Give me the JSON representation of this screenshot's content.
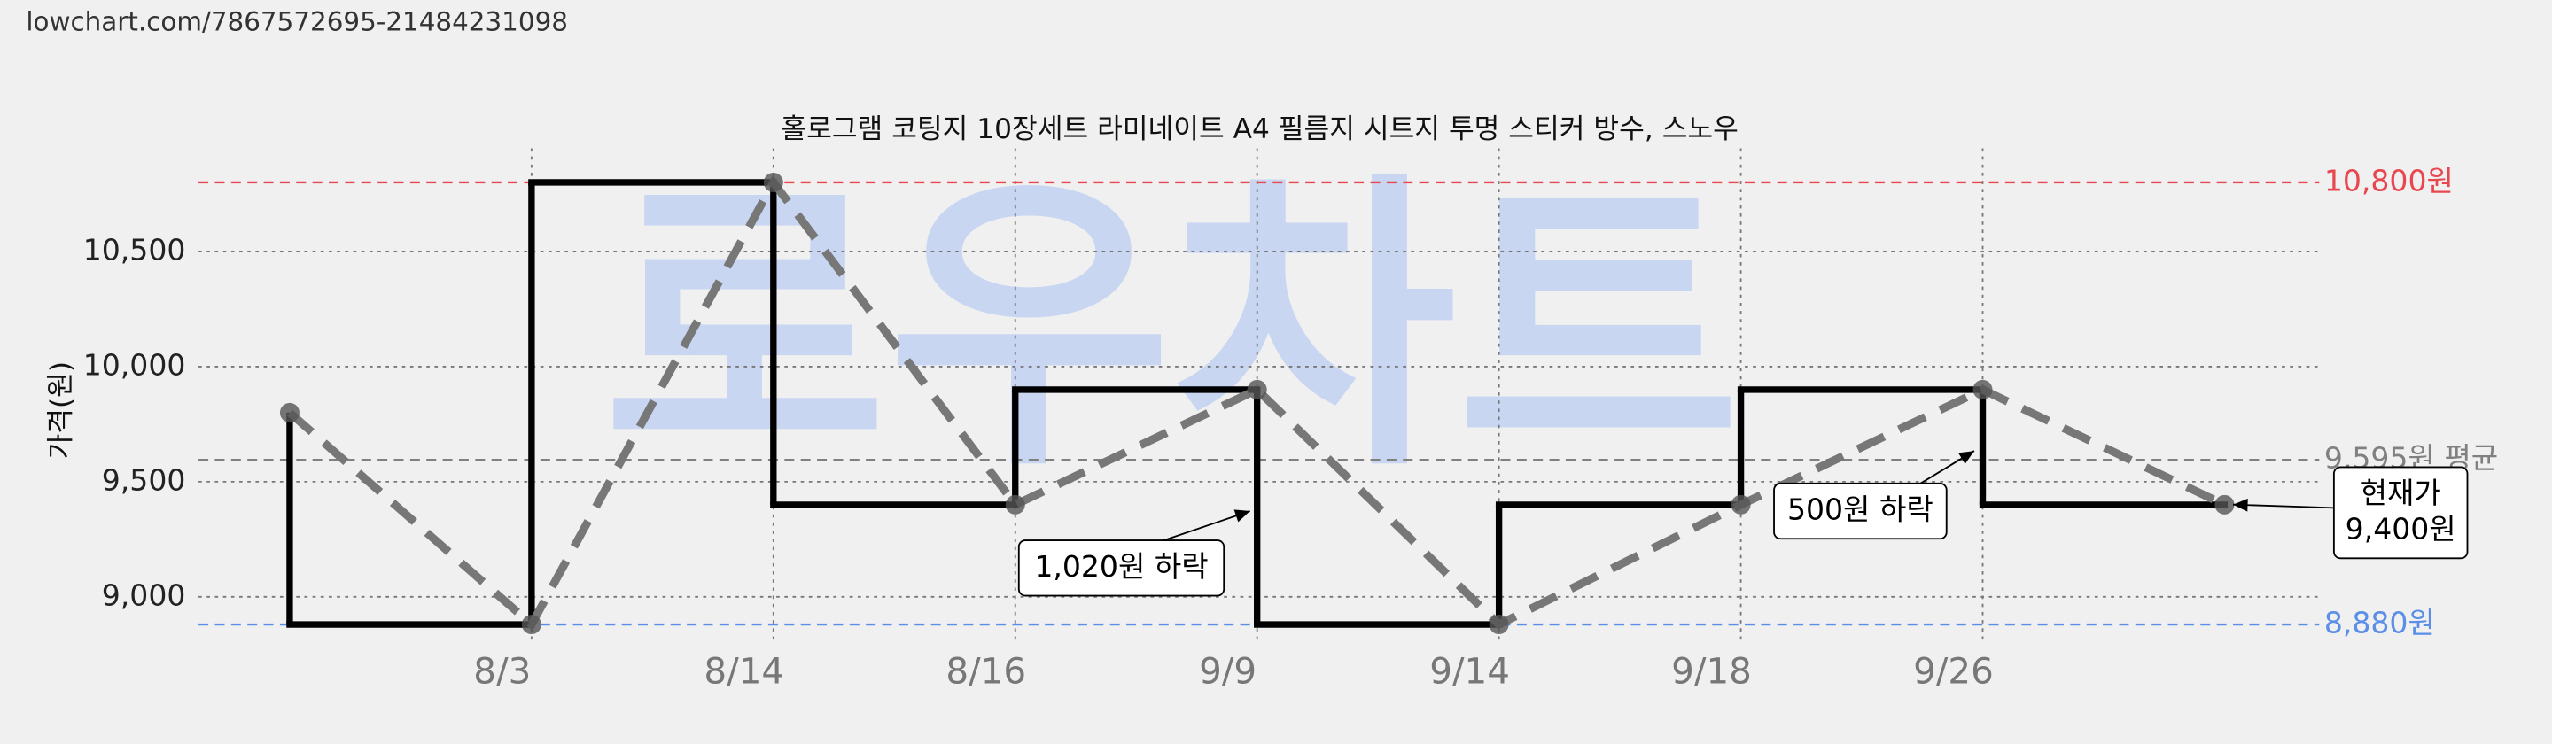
{
  "header": {
    "url": "lowchart.com/7867572695-21484231098"
  },
  "chart_data": {
    "type": "line",
    "title": "홀로그램 코팅지 10장세트 라미네이트 A4 필름지 시트지 투명 스티커 방수, 스노우",
    "watermark": "로우차트",
    "y_label": "가격(원)",
    "categories": [
      null,
      "8/3",
      "8/14",
      "8/16",
      "9/9",
      "9/14",
      "9/18",
      "9/26",
      null
    ],
    "series": [
      {
        "color": "#000000",
        "values": [
          9800,
          8880,
          10800,
          9400,
          9900,
          8880,
          9400,
          9900,
          9400
        ]
      }
    ],
    "ylim": [
      8800,
      10920
    ],
    "yticks": [
      {
        "value": 9000,
        "label": "9,000"
      },
      {
        "value": 9500,
        "label": "9,500"
      },
      {
        "value": 10000,
        "label": "10,000"
      },
      {
        "value": 10500,
        "label": "10,500"
      }
    ],
    "grid": true,
    "reference_lines": [
      {
        "value": 10800,
        "label": "10,800원",
        "color": "#e8474f"
      },
      {
        "value": 9595,
        "label": "9,595원 평균",
        "color": "#808080"
      },
      {
        "value": 8880,
        "label": "8,880원",
        "color": "#5b8ee6"
      }
    ],
    "annotations": [
      {
        "lines": [
          "1,020원 하락"
        ]
      },
      {
        "lines": [
          "500원 하락"
        ]
      },
      {
        "lines": [
          "현재가",
          "9,400원"
        ]
      }
    ]
  }
}
